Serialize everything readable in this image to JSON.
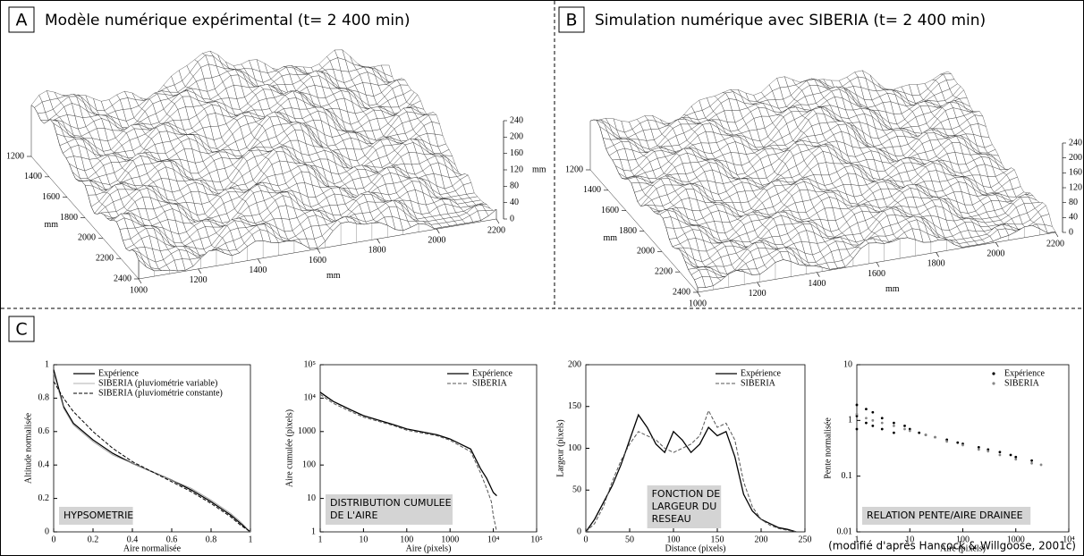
{
  "panels": [
    {
      "letter": "A",
      "title": "Modèle numérique expérimental (t= 2 400 min)",
      "xlim": [
        1000,
        2200
      ],
      "x_ticks": [
        1000,
        1200,
        1400,
        1600,
        1800,
        2000,
        2200
      ],
      "x_unit": "mm",
      "ylim": [
        1200,
        2400
      ],
      "y_ticks": [
        1200,
        1400,
        1600,
        1800,
        2000,
        2200,
        2400
      ],
      "y_unit": "mm",
      "zlim": [
        0,
        240
      ],
      "z_ticks": [
        0,
        40,
        80,
        120,
        160,
        200,
        240
      ],
      "z_unit": "mm"
    },
    {
      "letter": "B",
      "title": "Simulation numérique avec SIBERIA (t= 2 400 min)",
      "xlim": [
        1000,
        2200
      ],
      "x_ticks": [
        1000,
        1200,
        1400,
        1600,
        1800,
        2000,
        2200
      ],
      "x_unit": "mm",
      "ylim": [
        1200,
        2400
      ],
      "y_ticks": [
        1200,
        1400,
        1600,
        1800,
        2000,
        2200,
        2400
      ],
      "y_unit": "mm",
      "zlim": [
        0,
        240
      ],
      "z_ticks": [
        0,
        40,
        80,
        120,
        160,
        200,
        240
      ],
      "z_unit": "mm"
    }
  ],
  "C": {
    "letter": "C",
    "charts": [
      {
        "type": "line",
        "label_box": [
          "HYPSOMETRIE"
        ],
        "xlabel": "Aire normalisée",
        "ylabel": "Altitude normalisée",
        "xscale": "linear",
        "yscale": "linear",
        "xlim": [
          0,
          1
        ],
        "ylim": [
          0,
          1
        ],
        "xticks": [
          0,
          0.2,
          0.4,
          0.6,
          0.8,
          1
        ],
        "yticks": [
          0,
          0.2,
          0.4,
          0.6,
          0.8,
          1
        ],
        "x": [
          0,
          0.05,
          0.1,
          0.2,
          0.3,
          0.4,
          0.5,
          0.6,
          0.7,
          0.8,
          0.9,
          0.95,
          1
        ],
        "series": [
          {
            "name": "Expérience",
            "color": "#000000",
            "style": "solid",
            "values": [
              0.97,
              0.75,
              0.65,
              0.55,
              0.47,
              0.41,
              0.36,
              0.31,
              0.25,
              0.18,
              0.1,
              0.05,
              0
            ]
          },
          {
            "name": "SIBERIA (pluviométrie variable)",
            "color": "#999999",
            "style": "solid",
            "values": [
              0.95,
              0.74,
              0.64,
              0.54,
              0.46,
              0.41,
              0.36,
              0.31,
              0.26,
              0.19,
              0.11,
              0.06,
              0
            ]
          },
          {
            "name": "SIBERIA (pluviométrie constante)",
            "color": "#000000",
            "style": "dashed",
            "values": [
              0.9,
              0.8,
              0.72,
              0.6,
              0.5,
              0.42,
              0.36,
              0.3,
              0.24,
              0.17,
              0.09,
              0.04,
              0
            ]
          }
        ]
      },
      {
        "type": "line",
        "label_box": [
          "DISTRIBUTION CUMULEE",
          "DE L'AIRE"
        ],
        "xlabel": "Aire (pixels)",
        "ylabel": "Aire cumulée (pixels)",
        "xscale": "log",
        "yscale": "log",
        "xlim": [
          1,
          100000
        ],
        "ylim": [
          1,
          100000
        ],
        "xticks": [
          1,
          10,
          100,
          1000,
          {
            "value": 10000,
            "label": "10⁴"
          },
          {
            "value": 100000,
            "label": "10⁵"
          }
        ],
        "yticks": [
          1,
          10,
          100,
          1000,
          {
            "value": 10000,
            "label": "10⁴"
          },
          {
            "value": 100000,
            "label": "10⁵"
          }
        ],
        "x": [
          1,
          2,
          5,
          10,
          50,
          100,
          500,
          1000,
          3000,
          5000,
          7000,
          9000,
          10000,
          12000
        ],
        "series": [
          {
            "name": "Expérience",
            "color": "#000000",
            "style": "solid",
            "values": [
              15000,
              8000,
              4500,
              3000,
              1600,
              1200,
              800,
              600,
              300,
              80,
              40,
              20,
              15,
              12
            ]
          },
          {
            "name": "SIBERIA",
            "color": "#555555",
            "style": "dashed",
            "values": [
              13000,
              7000,
              4000,
              2700,
              1500,
              1100,
              750,
              550,
              250,
              60,
              20,
              8,
              3,
              1
            ]
          }
        ]
      },
      {
        "type": "line",
        "label_box": [
          "FONCTION DE",
          "LARGEUR DU",
          "RESEAU"
        ],
        "xlabel": "Distance (pixels)",
        "ylabel": "Largeur (pixels)",
        "xscale": "linear",
        "yscale": "linear",
        "xlim": [
          0,
          250
        ],
        "ylim": [
          0,
          200
        ],
        "xticks": [
          0,
          50,
          100,
          150,
          200,
          250
        ],
        "yticks": [
          0,
          50,
          100,
          150,
          200
        ],
        "x": [
          0,
          10,
          20,
          30,
          40,
          50,
          60,
          70,
          80,
          90,
          100,
          110,
          120,
          130,
          140,
          150,
          160,
          170,
          180,
          190,
          200,
          210,
          220,
          230,
          240
        ],
        "series": [
          {
            "name": "Expérience",
            "color": "#000000",
            "style": "solid",
            "values": [
              0,
              15,
              35,
              55,
              80,
              110,
              140,
              125,
              105,
              95,
              120,
              110,
              95,
              105,
              125,
              115,
              120,
              90,
              45,
              25,
              15,
              10,
              5,
              3,
              0
            ]
          },
          {
            "name": "SIBERIA",
            "color": "#555555",
            "style": "dashed",
            "values": [
              0,
              10,
              30,
              60,
              85,
              105,
              120,
              115,
              110,
              100,
              95,
              100,
              105,
              115,
              145,
              125,
              130,
              110,
              60,
              30,
              15,
              8,
              4,
              2,
              0
            ]
          }
        ]
      },
      {
        "type": "scatter",
        "label_box": [
          "RELATION PENTE/AIRE DRAINEE"
        ],
        "xlabel": "Aire (pixels)",
        "ylabel": "Pente normalisée",
        "xscale": "log",
        "yscale": "log",
        "xlim": [
          1,
          10000
        ],
        "ylim": [
          0.01,
          10
        ],
        "xticks": [
          1,
          10,
          100,
          1000,
          {
            "value": 10000,
            "label": "10⁴"
          }
        ],
        "yticks": [
          0.01,
          0.1,
          1,
          10
        ],
        "series": [
          {
            "name": "Expérience",
            "color": "#000000",
            "x": [
              1,
              1,
              1,
              1.5,
              1.5,
              2,
              2,
              3,
              3,
              5,
              5,
              8,
              10,
              15,
              20,
              30,
              50,
              80,
              100,
              200,
              300,
              500,
              800,
              1000,
              2000
            ],
            "values": [
              1.9,
              1.2,
              0.7,
              1.6,
              0.9,
              1.4,
              0.8,
              1.1,
              0.7,
              0.9,
              0.6,
              0.8,
              0.7,
              0.6,
              0.55,
              0.5,
              0.45,
              0.4,
              0.38,
              0.33,
              0.3,
              0.27,
              0.24,
              0.22,
              0.19
            ]
          },
          {
            "name": "SIBERIA",
            "color": "#888888",
            "x": [
              1,
              1.5,
              2,
              3,
              5,
              8,
              10,
              20,
              30,
              50,
              100,
              200,
              300,
              500,
              1000,
              2000,
              3000
            ],
            "values": [
              1.3,
              1.1,
              1.0,
              0.9,
              0.8,
              0.7,
              0.65,
              0.55,
              0.5,
              0.42,
              0.36,
              0.3,
              0.28,
              0.24,
              0.2,
              0.17,
              0.16
            ]
          }
        ]
      }
    ]
  },
  "credit": "(modifié d'après Hancock & Willgoose, 2001c)"
}
